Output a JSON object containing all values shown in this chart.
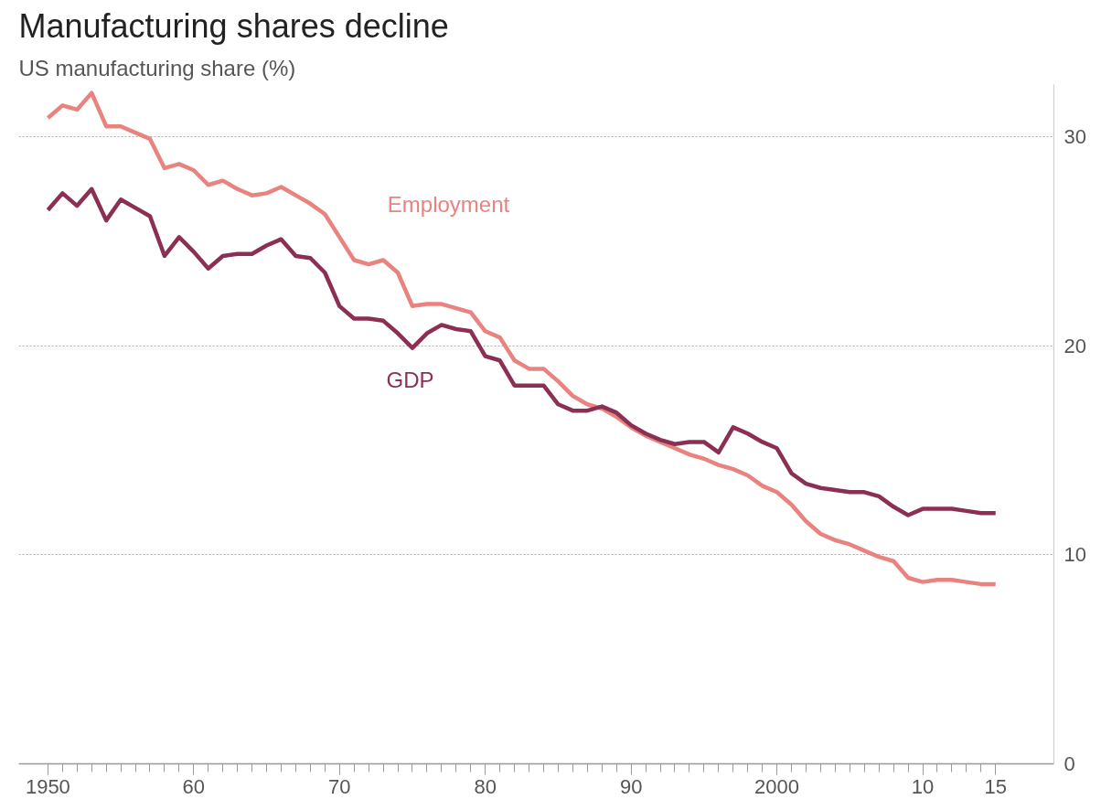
{
  "chart_data": {
    "type": "line",
    "title": "Manufacturing shares decline",
    "subtitle": "US manufacturing share (%)",
    "x": [
      1950,
      1951,
      1952,
      1953,
      1954,
      1955,
      1956,
      1957,
      1958,
      1959,
      1960,
      1961,
      1962,
      1963,
      1964,
      1965,
      1966,
      1967,
      1968,
      1969,
      1970,
      1971,
      1972,
      1973,
      1974,
      1975,
      1976,
      1977,
      1978,
      1979,
      1980,
      1981,
      1982,
      1983,
      1984,
      1985,
      1986,
      1987,
      1988,
      1989,
      1990,
      1991,
      1992,
      1993,
      1994,
      1995,
      1996,
      1997,
      1998,
      1999,
      2000,
      2001,
      2002,
      2003,
      2004,
      2005,
      2006,
      2007,
      2008,
      2009,
      2010,
      2011,
      2012,
      2013,
      2014,
      2015
    ],
    "series": [
      {
        "name": "Employment",
        "color": "#e9837f",
        "values": [
          30.9,
          31.5,
          31.3,
          32.1,
          30.5,
          30.5,
          30.2,
          29.9,
          28.5,
          28.7,
          28.4,
          27.7,
          27.9,
          27.5,
          27.2,
          27.3,
          27.6,
          27.2,
          26.8,
          26.3,
          25.2,
          24.1,
          23.9,
          24.1,
          23.5,
          21.9,
          22.0,
          22.0,
          21.8,
          21.6,
          20.7,
          20.4,
          19.3,
          18.9,
          18.9,
          18.3,
          17.6,
          17.2,
          17.0,
          16.6,
          16.1,
          15.7,
          15.4,
          15.1,
          14.8,
          14.6,
          14.3,
          14.1,
          13.8,
          13.3,
          13.0,
          12.4,
          11.6,
          11.0,
          10.7,
          10.5,
          10.2,
          9.9,
          9.7,
          8.9,
          8.7,
          8.8,
          8.8,
          8.7,
          8.6,
          8.6
        ]
      },
      {
        "name": "GDP",
        "color": "#8b2f55",
        "values": [
          26.5,
          27.3,
          26.7,
          27.5,
          26.0,
          27.0,
          26.6,
          26.2,
          24.3,
          25.2,
          24.5,
          23.7,
          24.3,
          24.4,
          24.4,
          24.8,
          25.1,
          24.3,
          24.2,
          23.5,
          21.9,
          21.3,
          21.3,
          21.2,
          20.6,
          19.9,
          20.6,
          21.0,
          20.8,
          20.7,
          19.5,
          19.3,
          18.1,
          18.1,
          18.1,
          17.2,
          16.9,
          16.9,
          17.1,
          16.8,
          16.2,
          15.8,
          15.5,
          15.3,
          15.4,
          15.4,
          14.9,
          16.1,
          15.8,
          15.4,
          15.1,
          13.9,
          13.4,
          13.2,
          13.1,
          13.0,
          13.0,
          12.8,
          12.3,
          11.9,
          12.2,
          12.2,
          12.2,
          12.1,
          12.0,
          12.0
        ]
      }
    ],
    "xlim": [
      1948,
      2019
    ],
    "xticks": [
      {
        "value": 1950,
        "label": "1950"
      },
      {
        "value": 1951,
        "label": null
      },
      {
        "value": 1952,
        "label": null
      },
      {
        "value": 1953,
        "label": null
      },
      {
        "value": 1954,
        "label": null
      },
      {
        "value": 1955,
        "label": null
      },
      {
        "value": 1956,
        "label": null
      },
      {
        "value": 1957,
        "label": null
      },
      {
        "value": 1958,
        "label": null
      },
      {
        "value": 1959,
        "label": null
      },
      {
        "value": 1960,
        "label": "60"
      },
      {
        "value": 1961,
        "label": null
      },
      {
        "value": 1962,
        "label": null
      },
      {
        "value": 1963,
        "label": null
      },
      {
        "value": 1964,
        "label": null
      },
      {
        "value": 1965,
        "label": null
      },
      {
        "value": 1966,
        "label": null
      },
      {
        "value": 1967,
        "label": null
      },
      {
        "value": 1968,
        "label": null
      },
      {
        "value": 1969,
        "label": null
      },
      {
        "value": 1970,
        "label": "70"
      },
      {
        "value": 1971,
        "label": null
      },
      {
        "value": 1972,
        "label": null
      },
      {
        "value": 1973,
        "label": null
      },
      {
        "value": 1974,
        "label": null
      },
      {
        "value": 1975,
        "label": null
      },
      {
        "value": 1976,
        "label": null
      },
      {
        "value": 1977,
        "label": null
      },
      {
        "value": 1978,
        "label": null
      },
      {
        "value": 1979,
        "label": null
      },
      {
        "value": 1980,
        "label": "80"
      },
      {
        "value": 1981,
        "label": null
      },
      {
        "value": 1982,
        "label": null
      },
      {
        "value": 1983,
        "label": null
      },
      {
        "value": 1984,
        "label": null
      },
      {
        "value": 1985,
        "label": null
      },
      {
        "value": 1986,
        "label": null
      },
      {
        "value": 1987,
        "label": null
      },
      {
        "value": 1988,
        "label": null
      },
      {
        "value": 1989,
        "label": null
      },
      {
        "value": 1990,
        "label": "90"
      },
      {
        "value": 1991,
        "label": null
      },
      {
        "value": 1992,
        "label": null
      },
      {
        "value": 1993,
        "label": null
      },
      {
        "value": 1994,
        "label": null
      },
      {
        "value": 1995,
        "label": null
      },
      {
        "value": 1996,
        "label": null
      },
      {
        "value": 1997,
        "label": null
      },
      {
        "value": 1998,
        "label": null
      },
      {
        "value": 1999,
        "label": null
      },
      {
        "value": 2000,
        "label": "2000"
      },
      {
        "value": 2001,
        "label": null
      },
      {
        "value": 2002,
        "label": null
      },
      {
        "value": 2003,
        "label": null
      },
      {
        "value": 2004,
        "label": null
      },
      {
        "value": 2005,
        "label": null
      },
      {
        "value": 2006,
        "label": null
      },
      {
        "value": 2007,
        "label": null
      },
      {
        "value": 2008,
        "label": null
      },
      {
        "value": 2009,
        "label": null
      },
      {
        "value": 2010,
        "label": "10"
      },
      {
        "value": 2011,
        "label": null
      },
      {
        "value": 2012,
        "label": null
      },
      {
        "value": 2013,
        "label": null
      },
      {
        "value": 2014,
        "label": null
      },
      {
        "value": 2015,
        "label": "15"
      }
    ],
    "ylim": [
      0,
      32.5
    ],
    "yticks": [
      0,
      10,
      20,
      30
    ],
    "grid": "y",
    "line_style": "solid",
    "marker": "none"
  }
}
